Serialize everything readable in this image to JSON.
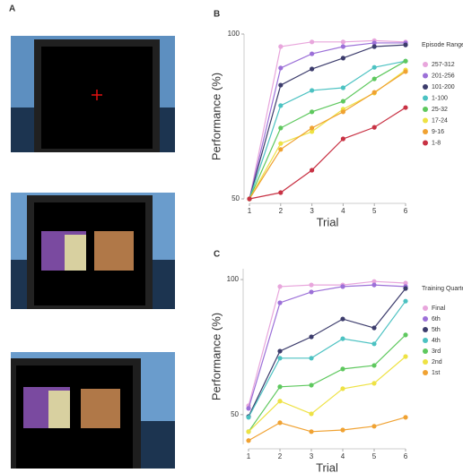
{
  "labels": [
    "A",
    "B",
    "C"
  ],
  "chart_data": [
    {
      "type": "line",
      "x_label": "Trial",
      "y_label": "Performance (%)",
      "legend_title": "Episode Range",
      "x": [
        1,
        2,
        3,
        4,
        5,
        6
      ],
      "xticks": [
        1,
        2,
        3,
        4,
        5,
        6
      ],
      "xlim": [
        1,
        6
      ],
      "ylim": [
        50,
        100
      ],
      "yticks": [
        50,
        100
      ],
      "series": [
        {
          "name": "257-312",
          "color": "#e8a6dc",
          "values": [
            50,
            96.2,
            97.6,
            97.6,
            98,
            97.6
          ]
        },
        {
          "name": "201-256",
          "color": "#9c70d8",
          "values": [
            50,
            89.7,
            94,
            96.2,
            97.3,
            97.3
          ]
        },
        {
          "name": "101-200",
          "color": "#3c3c6c",
          "values": [
            50,
            84.5,
            89.4,
            92.7,
            96.2,
            96.7
          ]
        },
        {
          "name": "1-100",
          "color": "#4cc2c2",
          "values": [
            50,
            78.3,
            82.9,
            83.7,
            89.9,
            91.8
          ]
        },
        {
          "name": "25-32",
          "color": "#5ec85e",
          "values": [
            50,
            71.5,
            76.4,
            79.6,
            86.4,
            91.8
          ]
        },
        {
          "name": "17-24",
          "color": "#eee244",
          "values": [
            50,
            66.8,
            70.4,
            77.2,
            82.1,
            89.1
          ]
        },
        {
          "name": "9-16",
          "color": "#f0a232",
          "values": [
            50,
            65,
            71.5,
            76.4,
            82.3,
            88.6
          ]
        },
        {
          "name": "1-8",
          "color": "#c83244",
          "values": [
            50,
            51.9,
            58.7,
            68.2,
            71.7,
            77.7
          ]
        }
      ]
    },
    {
      "type": "line",
      "x_label": "Trial",
      "y_label": "Performance (%)",
      "legend_title": "Training Quarter",
      "x": [
        1,
        2,
        3,
        4,
        5,
        6
      ],
      "xticks": [
        1,
        2,
        3,
        4,
        5,
        6
      ],
      "xlim": [
        1,
        6
      ],
      "ylim": [
        39,
        104
      ],
      "yticks": [
        50,
        100
      ],
      "series": [
        {
          "name": "Final",
          "color": "#e8a6dc",
          "values": [
            53.3,
            97.4,
            98,
            98,
            99.3,
            98.7
          ]
        },
        {
          "name": "6th",
          "color": "#9c70d8",
          "values": [
            52.3,
            91.4,
            95.4,
            97.4,
            98,
            97.4
          ]
        },
        {
          "name": "5th",
          "color": "#3c3c6c",
          "values": [
            49.3,
            73.5,
            78.8,
            85.4,
            82.1,
            96.7
          ]
        },
        {
          "name": "4th",
          "color": "#4cc2c2",
          "values": [
            49,
            70.9,
            70.9,
            78.1,
            76.2,
            92
          ]
        },
        {
          "name": "3rd",
          "color": "#5ec85e",
          "values": [
            43.7,
            60.3,
            60.9,
            66.9,
            68.2,
            79.5
          ]
        },
        {
          "name": "2nd",
          "color": "#eee244",
          "values": [
            43.7,
            55,
            50.3,
            59.6,
            61.6,
            71.5
          ]
        },
        {
          "name": "1st",
          "color": "#f0a232",
          "values": [
            40.4,
            47,
            43.7,
            44.3,
            45.7,
            49
          ]
        }
      ]
    }
  ]
}
